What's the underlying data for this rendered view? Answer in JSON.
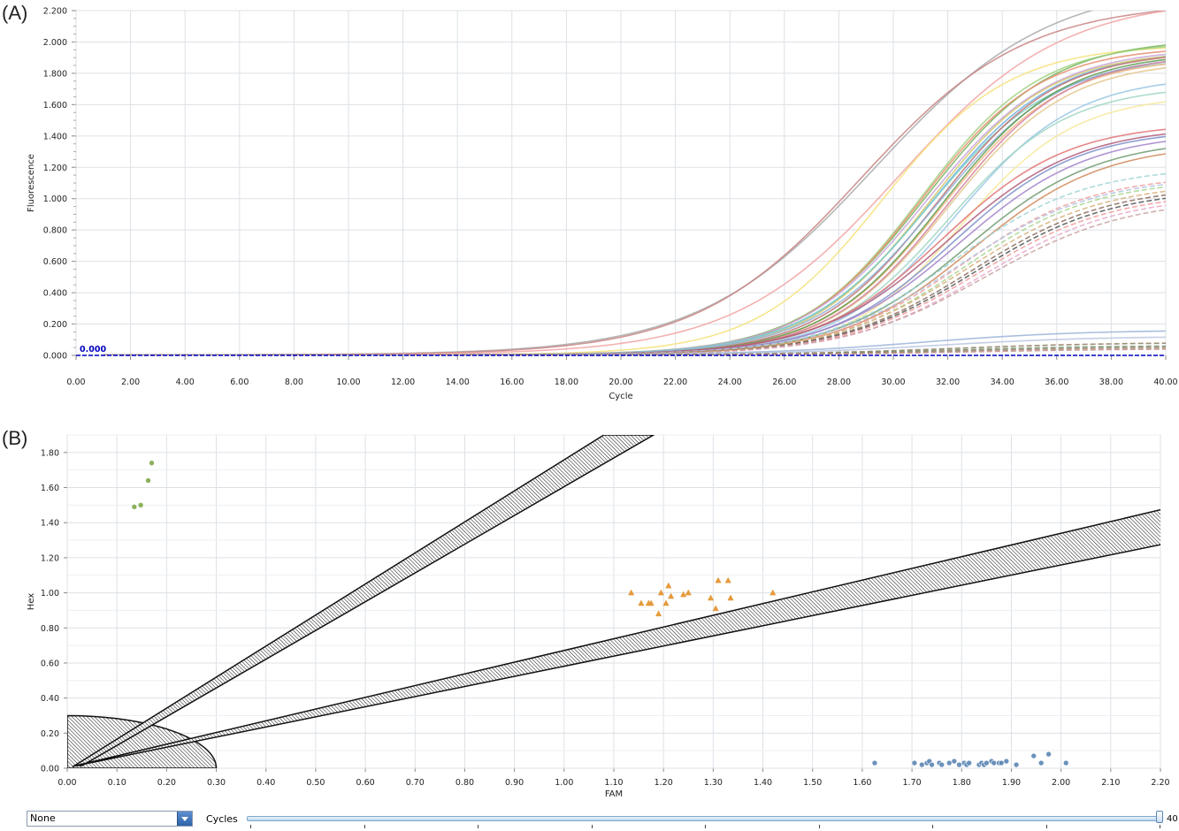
{
  "panels": {
    "a_label": "(A)",
    "b_label": "(B)"
  },
  "colors": {
    "grid": "#dde1e6",
    "threshold": "#0000c0",
    "cluster_hex": "#7ea84a",
    "cluster_het": "#e69a3c",
    "cluster_fam": "#5c86b4"
  },
  "controls": {
    "dropdown_value": "None",
    "dropdown_icon": "chevron-down-icon",
    "cycles_label": "Cycles",
    "cycles_value": 40,
    "cycles_max": 40,
    "cycles_value_label": "40"
  },
  "chart_data": [
    {
      "type": "line",
      "xlabel": "Cycle",
      "ylabel": "Fluorescence",
      "xlim": [
        0,
        40
      ],
      "ylim": [
        0,
        2.2
      ],
      "x_ticks": [
        "0.00",
        "2.00",
        "4.00",
        "6.00",
        "8.00",
        "10.00",
        "12.00",
        "14.00",
        "16.00",
        "18.00",
        "20.00",
        "22.00",
        "24.00",
        "26.00",
        "28.00",
        "30.00",
        "32.00",
        "34.00",
        "36.00",
        "38.00",
        "40.00"
      ],
      "y_ticks": [
        "0.000",
        "0.200",
        "0.400",
        "0.600",
        "0.800",
        "1.000",
        "1.200",
        "1.400",
        "1.600",
        "1.800",
        "2.000",
        "2.200"
      ],
      "threshold": {
        "value": 0,
        "label": "0.000"
      },
      "grid": true,
      "curve_model": "sigmoid amplification curves: fluorescence = plateau / (1 + exp(-(cycle - midpoint) / slope))",
      "series": [
        {
          "style": "solid",
          "color": "#a9a9a9",
          "plateau": 2.38,
          "midpoint": 29.3,
          "slope": 3.2
        },
        {
          "style": "solid",
          "color": "#c88484",
          "plateau": 2.25,
          "midpoint": 28.8,
          "slope": 3.0
        },
        {
          "style": "solid",
          "color": "#f2a3a3",
          "plateau": 2.28,
          "midpoint": 30.2,
          "slope": 3.0
        },
        {
          "style": "solid",
          "color": "#f4e27a",
          "plateau": 1.98,
          "midpoint": 29.6,
          "slope": 2.3
        },
        {
          "style": "solid",
          "color": "#77b35a",
          "plateau": 2.02,
          "midpoint": 31.2,
          "slope": 2.3
        },
        {
          "style": "solid",
          "color": "#9ed07d",
          "plateau": 2.0,
          "midpoint": 31.0,
          "slope": 2.2
        },
        {
          "style": "solid",
          "color": "#e88d6f",
          "plateau": 1.97,
          "midpoint": 31.0,
          "slope": 2.2
        },
        {
          "style": "solid",
          "color": "#6aaee0",
          "plateau": 1.95,
          "midpoint": 31.4,
          "slope": 2.3
        },
        {
          "style": "solid",
          "color": "#c7a3d8",
          "plateau": 1.96,
          "midpoint": 31.2,
          "slope": 2.3
        },
        {
          "style": "solid",
          "color": "#d4c76a",
          "plateau": 1.94,
          "midpoint": 31.3,
          "slope": 2.2
        },
        {
          "style": "solid",
          "color": "#7fcfc5",
          "plateau": 1.9,
          "midpoint": 31.3,
          "slope": 2.3
        },
        {
          "style": "solid",
          "color": "#bf7070",
          "plateau": 1.94,
          "midpoint": 31.6,
          "slope": 2.2
        },
        {
          "style": "solid",
          "color": "#8fb0d6",
          "plateau": 1.92,
          "midpoint": 31.6,
          "slope": 2.3
        },
        {
          "style": "solid",
          "color": "#f2b680",
          "plateau": 1.9,
          "midpoint": 31.8,
          "slope": 2.2
        },
        {
          "style": "solid",
          "color": "#5a9a4a",
          "plateau": 1.93,
          "midpoint": 31.8,
          "slope": 2.2
        },
        {
          "style": "solid",
          "color": "#e3c58a",
          "plateau": 1.88,
          "midpoint": 32.0,
          "slope": 2.2
        },
        {
          "style": "solid",
          "color": "#d27f9c",
          "plateau": 1.92,
          "midpoint": 32.0,
          "slope": 2.2
        },
        {
          "style": "solid",
          "color": "#97c6e4",
          "plateau": 1.78,
          "midpoint": 32.3,
          "slope": 2.2
        },
        {
          "style": "solid",
          "color": "#a0d6c2",
          "plateau": 1.72,
          "midpoint": 32.0,
          "slope": 2.2
        },
        {
          "style": "solid",
          "color": "#f7e79a",
          "plateau": 1.66,
          "midpoint": 32.5,
          "slope": 2.1
        },
        {
          "style": "solid",
          "color": "#e07272",
          "plateau": 1.48,
          "midpoint": 31.8,
          "slope": 2.3
        },
        {
          "style": "solid",
          "color": "#b05a7a",
          "plateau": 1.46,
          "midpoint": 32.0,
          "slope": 2.4
        },
        {
          "style": "solid",
          "color": "#7c8fc9",
          "plateau": 1.44,
          "midpoint": 32.2,
          "slope": 2.3
        },
        {
          "style": "solid",
          "color": "#a383c9",
          "plateau": 1.42,
          "midpoint": 32.4,
          "slope": 2.4
        },
        {
          "style": "solid",
          "color": "#6e9a6e",
          "plateau": 1.38,
          "midpoint": 32.7,
          "slope": 2.4
        },
        {
          "style": "solid",
          "color": "#cf8a5a",
          "plateau": 1.35,
          "midpoint": 32.9,
          "slope": 2.4
        },
        {
          "style": "dashed",
          "color": "#9fd4d4",
          "plateau": 1.2,
          "midpoint": 32.2,
          "slope": 2.4
        },
        {
          "style": "dashed",
          "color": "#f0a0a0",
          "plateau": 1.15,
          "midpoint": 32.5,
          "slope": 2.4
        },
        {
          "style": "dashed",
          "color": "#b0c4e0",
          "plateau": 1.14,
          "midpoint": 32.4,
          "slope": 2.5
        },
        {
          "style": "dashed",
          "color": "#a8d48f",
          "plateau": 1.12,
          "midpoint": 32.6,
          "slope": 2.4
        },
        {
          "style": "dashed",
          "color": "#d8b07a",
          "plateau": 1.1,
          "midpoint": 32.7,
          "slope": 2.5
        },
        {
          "style": "dashed",
          "color": "#8a6c5c",
          "plateau": 1.08,
          "midpoint": 32.9,
          "slope": 2.5
        },
        {
          "style": "dashed",
          "color": "#555555",
          "plateau": 1.06,
          "midpoint": 33.0,
          "slope": 2.5
        },
        {
          "style": "dashed",
          "color": "#f29999",
          "plateau": 1.04,
          "midpoint": 33.1,
          "slope": 2.5
        },
        {
          "style": "dashed",
          "color": "#e6a8c8",
          "plateau": 1.02,
          "midpoint": 33.3,
          "slope": 2.5
        },
        {
          "style": "dashed",
          "color": "#c9a0a0",
          "plateau": 1.0,
          "midpoint": 33.4,
          "slope": 2.6
        },
        {
          "style": "solid",
          "color": "#9bb4d8",
          "plateau": 0.16,
          "midpoint": 31.0,
          "slope": 3.0
        },
        {
          "style": "solid",
          "color": "#b8c6e0",
          "plateau": 0.12,
          "midpoint": 31.5,
          "slope": 3.0
        },
        {
          "style": "dashed",
          "color": "#8a7a5a",
          "plateau": 0.08,
          "midpoint": 32.0,
          "slope": 3.0
        },
        {
          "style": "dashed",
          "color": "#6c8c6c",
          "plateau": 0.06,
          "midpoint": 32.0,
          "slope": 3.0
        },
        {
          "style": "dashed",
          "color": "#a08060",
          "plateau": 0.05,
          "midpoint": 32.5,
          "slope": 3.0
        },
        {
          "style": "dashed",
          "color": "#c09090",
          "plateau": 0.04,
          "midpoint": 33.0,
          "slope": 3.0
        }
      ]
    },
    {
      "type": "scatter",
      "xlabel": "FAM",
      "ylabel": "Hex",
      "xlim": [
        0,
        2.2
      ],
      "ylim": [
        0,
        1.9
      ],
      "x_ticks": [
        "0.00",
        "0.10",
        "0.20",
        "0.30",
        "0.40",
        "0.50",
        "0.60",
        "0.70",
        "0.80",
        "0.90",
        "1.00",
        "1.10",
        "1.20",
        "1.30",
        "1.40",
        "1.50",
        "1.60",
        "1.70",
        "1.80",
        "1.90",
        "2.00",
        "2.10",
        "2.20"
      ],
      "y_ticks": [
        "0.00",
        "0.20",
        "0.40",
        "0.60",
        "0.80",
        "1.00",
        "1.20",
        "1.40",
        "1.60",
        "1.80"
      ],
      "grid": true,
      "clusters": [
        {
          "marker": "circle",
          "color": "#7ea84a",
          "points": [
            [
              0.135,
              1.49
            ],
            [
              0.148,
              1.5
            ],
            [
              0.163,
              1.64
            ],
            [
              0.17,
              1.74
            ]
          ]
        },
        {
          "marker": "triangle",
          "color": "#e69a3c",
          "points": [
            [
              1.135,
              1.0
            ],
            [
              1.155,
              0.94
            ],
            [
              1.17,
              0.94
            ],
            [
              1.175,
              0.94
            ],
            [
              1.19,
              0.88
            ],
            [
              1.195,
              1.0
            ],
            [
              1.205,
              0.94
            ],
            [
              1.21,
              1.04
            ],
            [
              1.215,
              0.98
            ],
            [
              1.24,
              0.99
            ],
            [
              1.25,
              1.0
            ],
            [
              1.295,
              0.97
            ],
            [
              1.305,
              0.91
            ],
            [
              1.31,
              1.07
            ],
            [
              1.33,
              1.07
            ],
            [
              1.335,
              0.97
            ],
            [
              1.42,
              1.0
            ]
          ]
        },
        {
          "marker": "circle",
          "color": "#5c86b4",
          "points": [
            [
              1.625,
              0.03
            ],
            [
              1.705,
              0.03
            ],
            [
              1.72,
              0.02
            ],
            [
              1.73,
              0.03
            ],
            [
              1.735,
              0.04
            ],
            [
              1.74,
              0.02
            ],
            [
              1.755,
              0.03
            ],
            [
              1.76,
              0.02
            ],
            [
              1.775,
              0.03
            ],
            [
              1.785,
              0.04
            ],
            [
              1.795,
              0.02
            ],
            [
              1.805,
              0.03
            ],
            [
              1.81,
              0.02
            ],
            [
              1.815,
              0.03
            ],
            [
              1.835,
              0.02
            ],
            [
              1.84,
              0.03
            ],
            [
              1.845,
              0.02
            ],
            [
              1.85,
              0.03
            ],
            [
              1.86,
              0.04
            ],
            [
              1.865,
              0.03
            ],
            [
              1.875,
              0.03
            ],
            [
              1.88,
              0.03
            ],
            [
              1.89,
              0.04
            ],
            [
              1.91,
              0.02
            ],
            [
              1.945,
              0.07
            ],
            [
              1.96,
              0.03
            ],
            [
              1.975,
              0.08
            ],
            [
              2.01,
              0.03
            ]
          ]
        }
      ],
      "regions": {
        "baseline_ellipse": {
          "center": [
            0,
            0
          ],
          "radius_x": 0.3,
          "radius_y": 0.3
        },
        "band_steep": {
          "from": [
            0.015,
            0.015
          ],
          "to_upper": [
            1.08,
            1.9
          ],
          "to_lower": [
            1.18,
            1.9
          ],
          "start_upper": [
            0.015,
            0.015
          ],
          "start_lower": [
            0.03,
            0.015
          ]
        },
        "band_shallow": {
          "from": [
            0.01,
            0.01
          ],
          "to_upper": [
            2.21,
            1.48
          ],
          "to_lower": [
            2.21,
            1.28
          ]
        }
      }
    }
  ]
}
